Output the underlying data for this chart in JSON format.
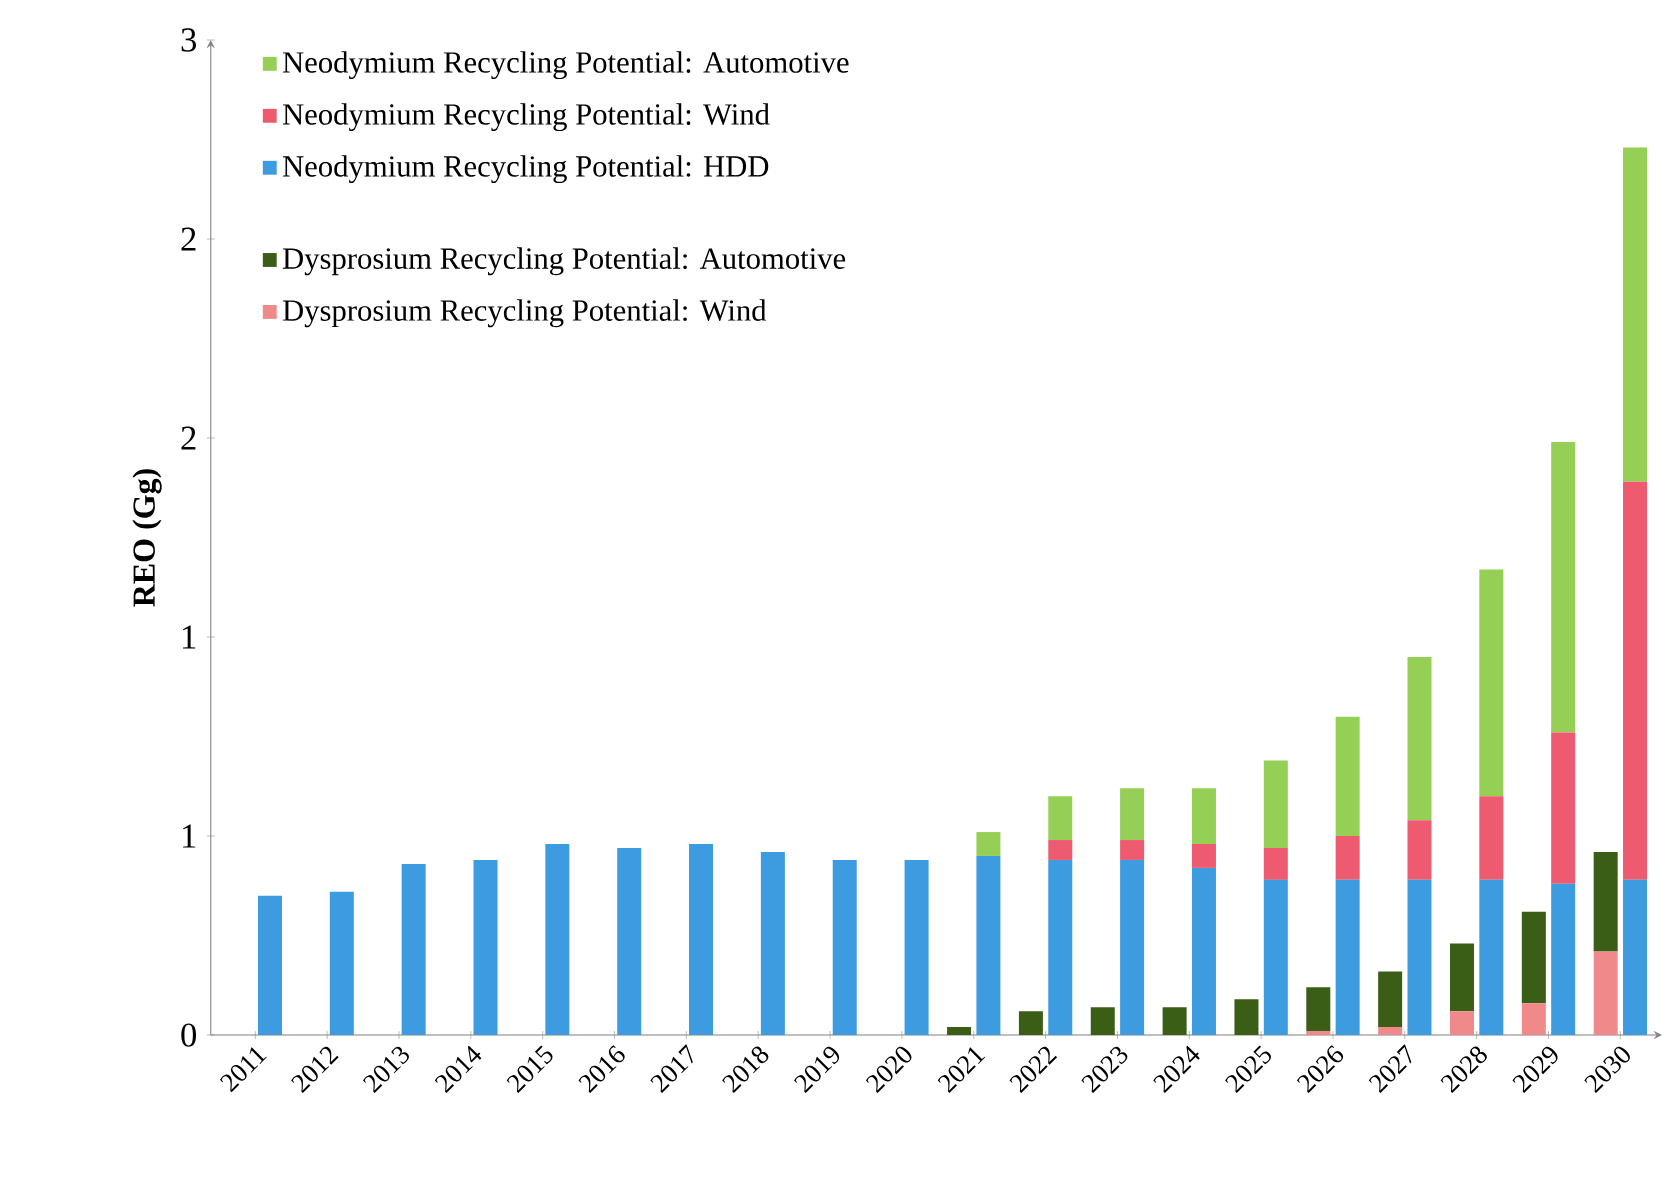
{
  "chart_data": [
    {
      "type": "bar",
      "stacked": true,
      "ylabel": "REO (Gg)",
      "categories": [
        "2011",
        "2012",
        "2013",
        "2014",
        "2015",
        "2016",
        "2017",
        "2018",
        "2019",
        "2020",
        "2021",
        "2022",
        "2023",
        "2024",
        "2025",
        "2026",
        "2027",
        "2028",
        "2029",
        "2030"
      ],
      "ylim": [
        0,
        2.5
      ],
      "yticks": [
        0,
        {
          "value": 0.5,
          "label": "1"
        },
        1,
        {
          "value": 1.5,
          "label": "2"
        },
        2,
        {
          "value": 2.5,
          "label": "3"
        }
      ],
      "legend": "top left",
      "series": [
        {
          "name": "Dysprosium Recycling Potential: Wind",
          "color": "#f08a8a",
          "values": [
            0,
            0,
            0,
            0,
            0,
            0,
            0,
            0,
            0,
            0,
            0,
            0,
            0,
            0,
            0,
            0.01,
            0.02,
            0.06,
            0.08,
            0.21
          ]
        },
        {
          "name": "Dysprosium Recycling Potential: Automotive",
          "color": "#3b5e16",
          "values": [
            0,
            0,
            0,
            0,
            0,
            0,
            0,
            0,
            0,
            0,
            0.02,
            0.06,
            0.07,
            0.07,
            0.09,
            0.11,
            0.14,
            0.17,
            0.23,
            0.25
          ]
        }
      ]
    },
    {
      "type": "bar",
      "stacked": true,
      "categories": [
        "2011",
        "2012",
        "2013",
        "2014",
        "2015",
        "2016",
        "2017",
        "2018",
        "2019",
        "2020",
        "2021",
        "2022",
        "2023",
        "2024",
        "2025",
        "2026",
        "2027",
        "2028",
        "2029",
        "2030"
      ],
      "ylim": [
        0,
        2.5
      ],
      "tick_labels": false,
      "legend": "top left",
      "series": [
        {
          "name": "Neodymium Recycling Potential: HDD",
          "color": "#3d9be0",
          "values": [
            0.35,
            0.36,
            0.43,
            0.44,
            0.48,
            0.47,
            0.48,
            0.46,
            0.44,
            0.44,
            0.45,
            0.44,
            0.44,
            0.42,
            0.39,
            0.39,
            0.39,
            0.39,
            0.38,
            0.39
          ]
        },
        {
          "name": "Neodymium Recycling Potential: Wind",
          "color": "#ee5a70",
          "values": [
            0,
            0,
            0,
            0,
            0,
            0,
            0,
            0,
            0,
            0,
            0,
            0.05,
            0.05,
            0.06,
            0.08,
            0.11,
            0.15,
            0.21,
            0.38,
            1.0
          ]
        },
        {
          "name": "Neodymium Recycling Potential: Automotive",
          "color": "#96cf55",
          "values": [
            0,
            0,
            0,
            0,
            0,
            0,
            0,
            0,
            0,
            0,
            0.06,
            0.11,
            0.13,
            0.14,
            0.22,
            0.3,
            0.41,
            0.57,
            0.73,
            0.84
          ]
        }
      ]
    }
  ]
}
